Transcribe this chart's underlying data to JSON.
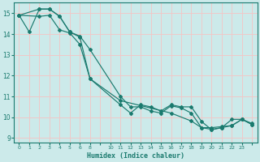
{
  "xlabel": "Humidex (Indice chaleur)",
  "bg_color": "#cceaea",
  "grid_color": "#f0c8c8",
  "line_color": "#1a7a6e",
  "xlim": [
    -0.5,
    23.5
  ],
  "ylim": [
    8.8,
    15.5
  ],
  "xtick_positions": [
    0,
    1,
    2,
    3,
    4,
    5,
    6,
    7,
    8,
    9,
    10,
    11,
    12,
    13,
    14,
    15,
    16,
    17,
    18,
    19,
    20,
    21,
    22,
    23
  ],
  "xtick_labels": [
    "0",
    "1",
    "2",
    "3",
    "4",
    "5",
    "6",
    "8",
    "",
    "10",
    "11",
    "12",
    "13",
    "14",
    "15",
    "16",
    "17",
    "18",
    "19",
    "20",
    "21",
    "22",
    "23",
    ""
  ],
  "yticks": [
    9,
    10,
    11,
    12,
    13,
    14,
    15
  ],
  "lines": [
    {
      "x": [
        0,
        1,
        2,
        3,
        4,
        5,
        6,
        7,
        10,
        11,
        12,
        13,
        14,
        15,
        16,
        17,
        18,
        19,
        20,
        21,
        22,
        23
      ],
      "y": [
        14.9,
        14.1,
        15.2,
        15.2,
        14.85,
        14.1,
        13.85,
        11.85,
        10.6,
        10.2,
        10.6,
        10.5,
        10.3,
        10.6,
        10.5,
        10.5,
        9.8,
        9.4,
        9.5,
        9.6,
        9.9,
        9.7
      ]
    },
    {
      "x": [
        0,
        2,
        3,
        4,
        5,
        6,
        7,
        10,
        11,
        12,
        13,
        14,
        15,
        16,
        17,
        18,
        19,
        20,
        21,
        22,
        23
      ],
      "y": [
        14.9,
        15.2,
        15.2,
        14.85,
        14.1,
        13.9,
        13.25,
        11.0,
        10.5,
        10.5,
        10.3,
        10.2,
        10.55,
        10.45,
        10.2,
        9.5,
        9.5,
        9.55,
        9.6,
        9.9,
        9.65
      ]
    },
    {
      "x": [
        0,
        2,
        3,
        4,
        5,
        6,
        7,
        10,
        15,
        17,
        18,
        19,
        20,
        21,
        22,
        23
      ],
      "y": [
        14.9,
        14.85,
        14.9,
        14.2,
        14.05,
        13.5,
        11.85,
        10.8,
        10.2,
        9.82,
        9.5,
        9.42,
        9.5,
        9.9,
        9.9,
        9.65
      ]
    }
  ]
}
